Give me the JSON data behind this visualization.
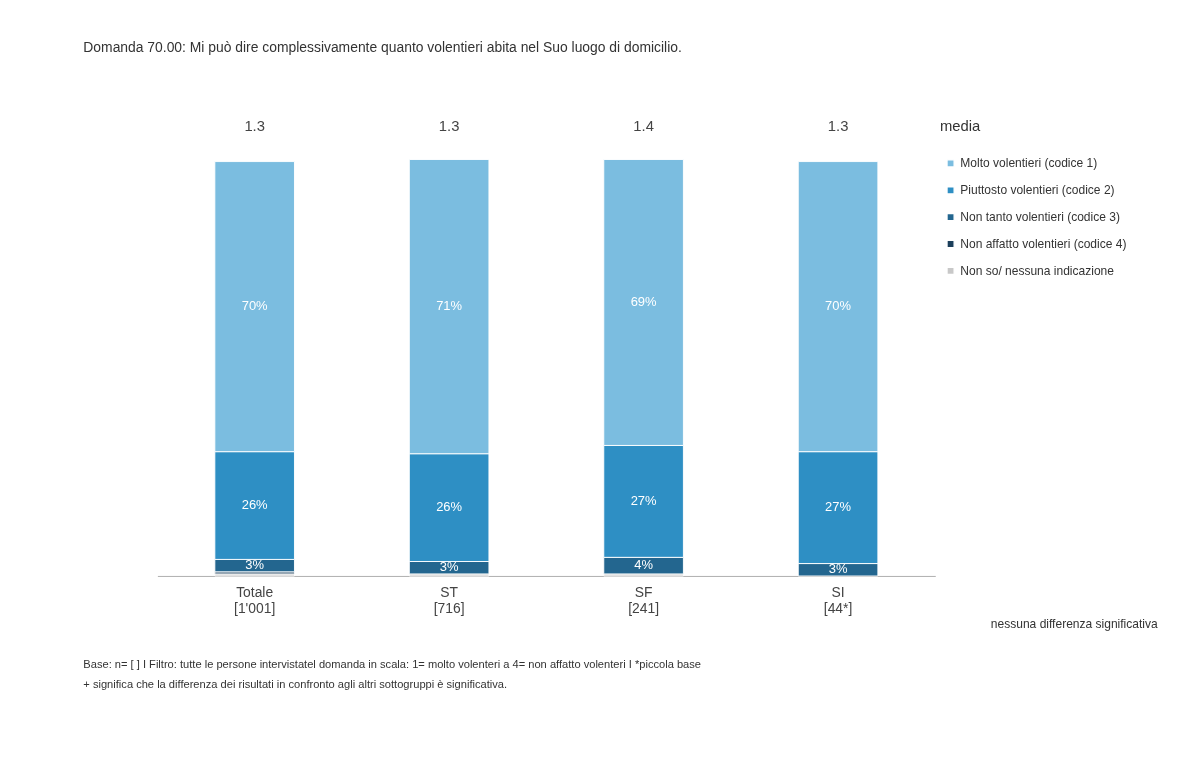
{
  "chart_data": {
    "type": "bar",
    "stacked": true,
    "title": "Domanda 70.00:    Mi può dire complessivamente quanto volentieri abita nel Suo luogo di domicilio.",
    "categories": [
      "Totale\n[1'001]",
      "ST\n[716]",
      "SF\n[241]",
      "SI\n[44*]"
    ],
    "ylim": [
      0,
      101
    ],
    "legend": "right",
    "grid": false,
    "tick_labels": "x",
    "series": [
      {
        "name": "Non so/ nessuna indicazione",
        "color": "#c8c8c8",
        "values": [
          0.5,
          0.5,
          0.5,
          0
        ],
        "value_labels": [
          null,
          null,
          null,
          null
        ]
      },
      {
        "name": "Non affatto volentieri (codice 4)",
        "color": "#1b3f5b",
        "values": [
          0.5,
          0,
          0,
          0
        ],
        "value_labels": [
          null,
          null,
          null,
          null
        ]
      },
      {
        "name": "Non tanto volentieri (codice 3)",
        "color": "#23668f",
        "values": [
          3,
          3,
          4,
          3
        ],
        "value_labels": [
          "3%",
          "3%",
          "4%",
          "3%"
        ]
      },
      {
        "name": "Piuttosto volentieri (codice 2)",
        "color": "#2e8fc4",
        "values": [
          26,
          26,
          27,
          27
        ],
        "value_labels": [
          "26%",
          "26%",
          "27%",
          "27%"
        ]
      },
      {
        "name": "Molto volentieri (codice 1)",
        "color": "#7bbde0",
        "values": [
          70,
          71,
          69,
          70
        ],
        "value_labels": [
          "70%",
          "71%",
          "69%",
          "70%"
        ]
      }
    ],
    "annotations": [
      "1.3",
      "1.3",
      "1.4",
      "1.3",
      "media",
      "nessuna differenza significativa",
      "Base:  n= [ ] I Filtro: tutte le persone intervistatel domanda in scala: 1= molto volenteri a 4= non affatto volenteri I *piccola base",
      "+ significa che la differenza dei risultati in confronto agli altri sottogruppi è significativa."
    ]
  }
}
